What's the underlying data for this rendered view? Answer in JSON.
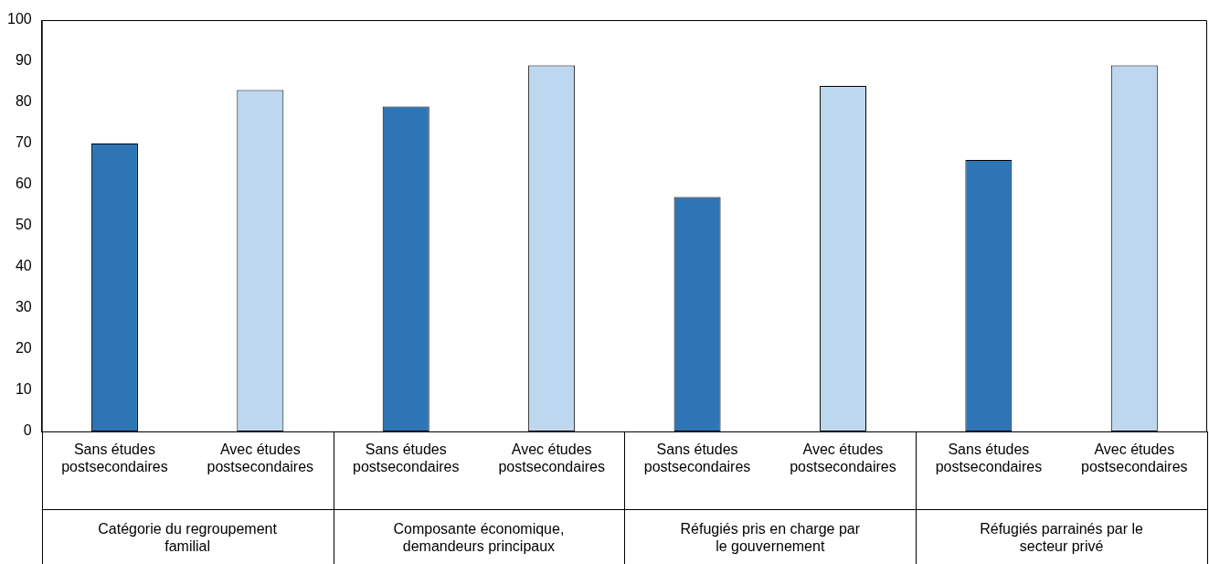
{
  "chart_data": {
    "type": "bar",
    "categories": [
      "Sans études postsecondaires",
      "Avec études postsecondaires",
      "Sans études postsecondaires",
      "Avec études postsecondaires",
      "Sans études postsecondaires",
      "Avec études postsecondaires",
      "Sans études postsecondaires",
      "Avec études postsecondaires"
    ],
    "values": [
      70,
      83,
      79,
      89,
      57,
      84,
      66,
      89
    ],
    "colors": [
      "#2e75b6",
      "#bdd7ee",
      "#2e75b6",
      "#bdd7ee",
      "#2e75b6",
      "#bdd7ee",
      "#2e75b6",
      "#bdd7ee"
    ],
    "ylim": [
      0,
      100
    ],
    "yticks": [
      0,
      10,
      20,
      30,
      40,
      50,
      60,
      70,
      80,
      90,
      100
    ],
    "annotations": [
      "Catégorie du regroupement familial",
      "Composante économique, demandeurs principaux",
      "Réfugiés pris en charge par le gouvernement",
      "Réfugiés parrainés par le secteur privé"
    ]
  }
}
